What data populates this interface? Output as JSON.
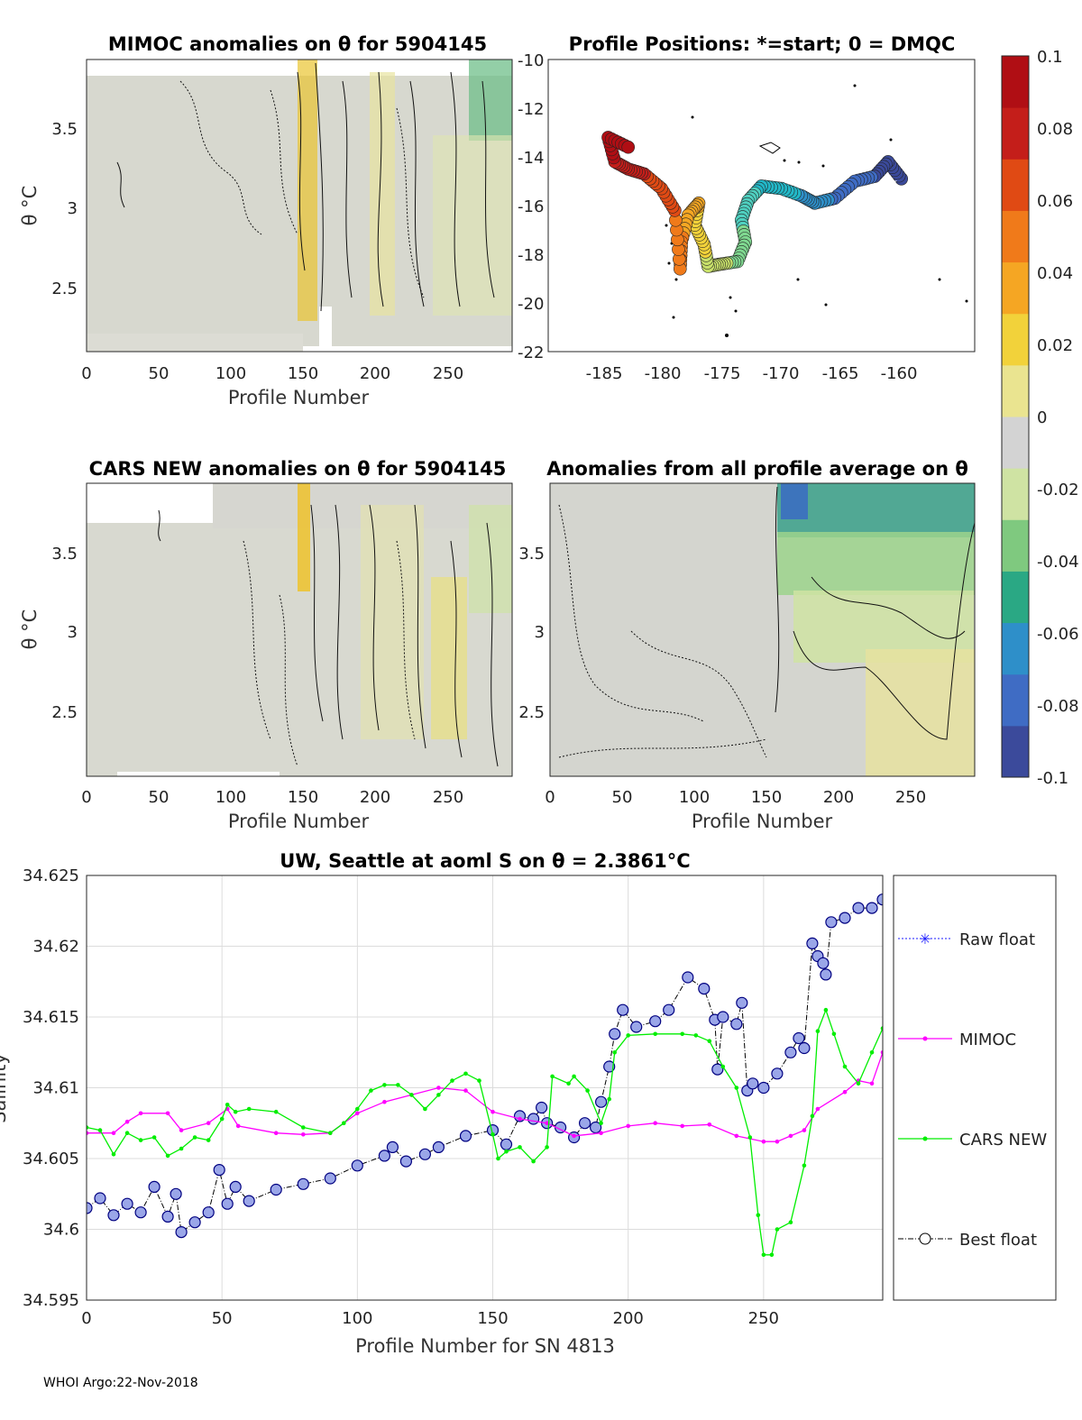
{
  "footer": "WHOI Argo:22-Nov-2018",
  "chart_data": [
    {
      "type": "heatmap",
      "title": "MIMOC anomalies on θ  for 5904145",
      "xlabel": "Profile Number",
      "ylabel": "θ °C",
      "xlim": [
        0,
        294
      ],
      "ylim": [
        2.1,
        3.9
      ],
      "xticks": [
        0,
        50,
        100,
        150,
        200,
        250
      ],
      "yticks": [
        2.5,
        3,
        3.5
      ],
      "colorbar_range": [
        -0.1,
        0.1
      ]
    },
    {
      "type": "scatter",
      "title": "Profile Positions: *=start; 0 = DMQC",
      "xlim": [
        -188,
        -156
      ],
      "ylim": [
        -22,
        -10
      ],
      "xticks": [
        -185,
        -180,
        -175,
        -170,
        -165,
        -160
      ],
      "yticks": [
        -10,
        -12,
        -14,
        -16,
        -18,
        -20,
        -22
      ],
      "track": [
        {
          "lon": -161.5,
          "lat": -14.9
        },
        {
          "lon": -162.5,
          "lat": -14.2
        },
        {
          "lon": -163.5,
          "lat": -14.8
        },
        {
          "lon": -165.0,
          "lat": -15.0
        },
        {
          "lon": -166.5,
          "lat": -15.7
        },
        {
          "lon": -168.0,
          "lat": -15.9
        },
        {
          "lon": -169.0,
          "lat": -15.6
        },
        {
          "lon": -170.5,
          "lat": -15.3
        },
        {
          "lon": -172.0,
          "lat": -15.2
        },
        {
          "lon": -173.0,
          "lat": -15.8
        },
        {
          "lon": -173.5,
          "lat": -16.6
        },
        {
          "lon": -173.2,
          "lat": -17.5
        },
        {
          "lon": -173.8,
          "lat": -18.3
        },
        {
          "lon": -175.0,
          "lat": -18.4
        },
        {
          "lon": -176.0,
          "lat": -18.5
        },
        {
          "lon": -176.3,
          "lat": -17.6
        },
        {
          "lon": -177.0,
          "lat": -16.8
        },
        {
          "lon": -176.7,
          "lat": -15.9
        },
        {
          "lon": -177.5,
          "lat": -16.4
        },
        {
          "lon": -178.0,
          "lat": -17.5
        },
        {
          "lon": -178.1,
          "lat": -18.6
        },
        {
          "lon": -178.5,
          "lat": -16.2
        },
        {
          "lon": -179.5,
          "lat": -15.3
        },
        {
          "lon": -180.8,
          "lat": -14.7
        },
        {
          "lon": -182.0,
          "lat": -14.5
        },
        {
          "lon": -183.0,
          "lat": -14.2
        },
        {
          "lon": -183.5,
          "lat": -13.2
        },
        {
          "lon": -182.0,
          "lat": -13.6
        }
      ],
      "start_marker": {
        "lon": -163.0,
        "lat": -15.1
      }
    },
    {
      "type": "heatmap",
      "title": "CARS NEW anomalies on θ for 5904145",
      "xlabel": "Profile Number",
      "ylabel": "θ °C",
      "xlim": [
        0,
        294
      ],
      "ylim": [
        2.1,
        3.9
      ],
      "xticks": [
        0,
        50,
        100,
        150,
        200,
        250
      ],
      "yticks": [
        2.5,
        3,
        3.5
      ]
    },
    {
      "type": "heatmap",
      "title": "Anomalies from all profile average on θ",
      "xlabel": "Profile Number",
      "xlim": [
        0,
        294
      ],
      "ylim": [
        2.1,
        3.9
      ],
      "xticks": [
        0,
        50,
        100,
        150,
        200,
        250
      ],
      "yticks": [
        2.5,
        3,
        3.5
      ]
    },
    {
      "type": "colorbar",
      "ticks": [
        "0.1",
        "0.08",
        "0.06",
        "0.04",
        "0.02",
        "0",
        "-0.02",
        "-0.04",
        "-0.06",
        "-0.08",
        "-0.1"
      ],
      "colors": [
        "#3b4a9b",
        "#3f6cc4",
        "#2e8fc9",
        "#2aa884",
        "#7fc97f",
        "#cfe3a3",
        "#d3d3d3",
        "#eae490",
        "#f2d23a",
        "#f5a623",
        "#f07a1a",
        "#e04a14",
        "#c41e1a",
        "#b00e14"
      ]
    },
    {
      "type": "line",
      "title": "UW, Seattle at aoml S on θ = 2.3861°C",
      "xlabel": "Profile Number for SN 4813",
      "ylabel": "Salinity",
      "xlim": [
        0,
        294
      ],
      "ylim": [
        34.595,
        34.625
      ],
      "xticks": [
        0,
        50,
        100,
        150,
        200,
        250
      ],
      "yticks": [
        "34.595",
        "34.6",
        "34.605",
        "34.61",
        "34.615",
        "34.62",
        "34.625"
      ],
      "grid": true,
      "legend": [
        "Raw float",
        "MIMOC",
        "CARS NEW",
        "Best float"
      ],
      "series": [
        {
          "name": "Best float",
          "color": "#000080",
          "points": [
            [
              0,
              34.6015
            ],
            [
              5,
              34.6022
            ],
            [
              10,
              34.601
            ],
            [
              15,
              34.6018
            ],
            [
              20,
              34.6012
            ],
            [
              25,
              34.603
            ],
            [
              30,
              34.6009
            ],
            [
              33,
              34.6025
            ],
            [
              35,
              34.5998
            ],
            [
              40,
              34.6005
            ],
            [
              45,
              34.6012
            ],
            [
              49,
              34.6042
            ],
            [
              52,
              34.6018
            ],
            [
              55,
              34.603
            ],
            [
              60,
              34.602
            ],
            [
              70,
              34.6028
            ],
            [
              80,
              34.6032
            ],
            [
              90,
              34.6036
            ],
            [
              100,
              34.6045
            ],
            [
              110,
              34.6052
            ],
            [
              113,
              34.6058
            ],
            [
              118,
              34.6048
            ],
            [
              125,
              34.6053
            ],
            [
              130,
              34.6058
            ],
            [
              140,
              34.6066
            ],
            [
              150,
              34.607
            ],
            [
              155,
              34.606
            ],
            [
              160,
              34.608
            ],
            [
              165,
              34.6078
            ],
            [
              168,
              34.6086
            ],
            [
              170,
              34.6075
            ],
            [
              175,
              34.6072
            ],
            [
              180,
              34.6065
            ],
            [
              184,
              34.6075
            ],
            [
              188,
              34.6072
            ],
            [
              190,
              34.609
            ],
            [
              193,
              34.6115
            ],
            [
              195,
              34.6138
            ],
            [
              198,
              34.6155
            ],
            [
              203,
              34.6143
            ],
            [
              210,
              34.6147
            ],
            [
              215,
              34.6155
            ],
            [
              222,
              34.6178
            ],
            [
              228,
              34.617
            ],
            [
              232,
              34.6148
            ],
            [
              233,
              34.6113
            ],
            [
              235,
              34.615
            ],
            [
              240,
              34.6145
            ],
            [
              242,
              34.616
            ],
            [
              244,
              34.6098
            ],
            [
              246,
              34.6103
            ],
            [
              250,
              34.61
            ],
            [
              255,
              34.611
            ],
            [
              260,
              34.6125
            ],
            [
              263,
              34.6135
            ],
            [
              265,
              34.6128
            ],
            [
              268,
              34.6202
            ],
            [
              270,
              34.6193
            ],
            [
              272,
              34.6188
            ],
            [
              273,
              34.618
            ],
            [
              275,
              34.6217
            ],
            [
              280,
              34.622
            ],
            [
              285,
              34.6227
            ],
            [
              290,
              34.6227
            ],
            [
              294,
              34.6233
            ]
          ]
        },
        {
          "name": "MIMOC",
          "color": "#ff00ff",
          "points": [
            [
              0,
              34.6068
            ],
            [
              10,
              34.6068
            ],
            [
              15,
              34.6076
            ],
            [
              20,
              34.6082
            ],
            [
              30,
              34.6082
            ],
            [
              35,
              34.607
            ],
            [
              45,
              34.6075
            ],
            [
              52,
              34.6085
            ],
            [
              56,
              34.6073
            ],
            [
              70,
              34.6068
            ],
            [
              80,
              34.6067
            ],
            [
              90,
              34.6068
            ],
            [
              100,
              34.6082
            ],
            [
              110,
              34.609
            ],
            [
              120,
              34.6095
            ],
            [
              130,
              34.61
            ],
            [
              140,
              34.6098
            ],
            [
              150,
              34.6083
            ],
            [
              160,
              34.6078
            ],
            [
              170,
              34.6075
            ],
            [
              180,
              34.6066
            ],
            [
              190,
              34.6068
            ],
            [
              200,
              34.6073
            ],
            [
              210,
              34.6075
            ],
            [
              220,
              34.6073
            ],
            [
              230,
              34.6074
            ],
            [
              240,
              34.6066
            ],
            [
              250,
              34.6062
            ],
            [
              255,
              34.6062
            ],
            [
              260,
              34.6066
            ],
            [
              265,
              34.607
            ],
            [
              270,
              34.6085
            ],
            [
              280,
              34.6097
            ],
            [
              285,
              34.6105
            ],
            [
              290,
              34.6103
            ],
            [
              294,
              34.6125
            ]
          ]
        },
        {
          "name": "CARS NEW",
          "color": "#00ee00",
          "points": [
            [
              0,
              34.6072
            ],
            [
              5,
              34.607
            ],
            [
              10,
              34.6053
            ],
            [
              15,
              34.6068
            ],
            [
              20,
              34.6063
            ],
            [
              25,
              34.6065
            ],
            [
              30,
              34.6052
            ],
            [
              35,
              34.6057
            ],
            [
              40,
              34.6065
            ],
            [
              45,
              34.6063
            ],
            [
              50,
              34.6078
            ],
            [
              52,
              34.6088
            ],
            [
              55,
              34.6083
            ],
            [
              60,
              34.6085
            ],
            [
              70,
              34.6083
            ],
            [
              80,
              34.6072
            ],
            [
              90,
              34.6068
            ],
            [
              95,
              34.6075
            ],
            [
              100,
              34.6085
            ],
            [
              105,
              34.6098
            ],
            [
              110,
              34.6102
            ],
            [
              115,
              34.6102
            ],
            [
              120,
              34.6095
            ],
            [
              125,
              34.6085
            ],
            [
              130,
              34.6095
            ],
            [
              135,
              34.6105
            ],
            [
              140,
              34.611
            ],
            [
              145,
              34.6105
            ],
            [
              150,
              34.6067
            ],
            [
              152,
              34.605
            ],
            [
              155,
              34.6055
            ],
            [
              160,
              34.6058
            ],
            [
              165,
              34.6048
            ],
            [
              170,
              34.6058
            ],
            [
              172,
              34.6108
            ],
            [
              178,
              34.6103
            ],
            [
              180,
              34.6108
            ],
            [
              185,
              34.6098
            ],
            [
              190,
              34.6075
            ],
            [
              193,
              34.6092
            ],
            [
              195,
              34.6125
            ],
            [
              200,
              34.6137
            ],
            [
              210,
              34.6138
            ],
            [
              220,
              34.6138
            ],
            [
              225,
              34.6137
            ],
            [
              230,
              34.6133
            ],
            [
              235,
              34.6115
            ],
            [
              240,
              34.61
            ],
            [
              245,
              34.6065
            ],
            [
              248,
              34.601
            ],
            [
              250,
              34.5982
            ],
            [
              253,
              34.5982
            ],
            [
              255,
              34.6
            ],
            [
              260,
              34.6005
            ],
            [
              265,
              34.6045
            ],
            [
              268,
              34.608
            ],
            [
              270,
              34.614
            ],
            [
              273,
              34.6155
            ],
            [
              276,
              34.6138
            ],
            [
              280,
              34.6115
            ],
            [
              285,
              34.6103
            ],
            [
              290,
              34.6125
            ],
            [
              294,
              34.6142
            ]
          ]
        }
      ]
    }
  ]
}
